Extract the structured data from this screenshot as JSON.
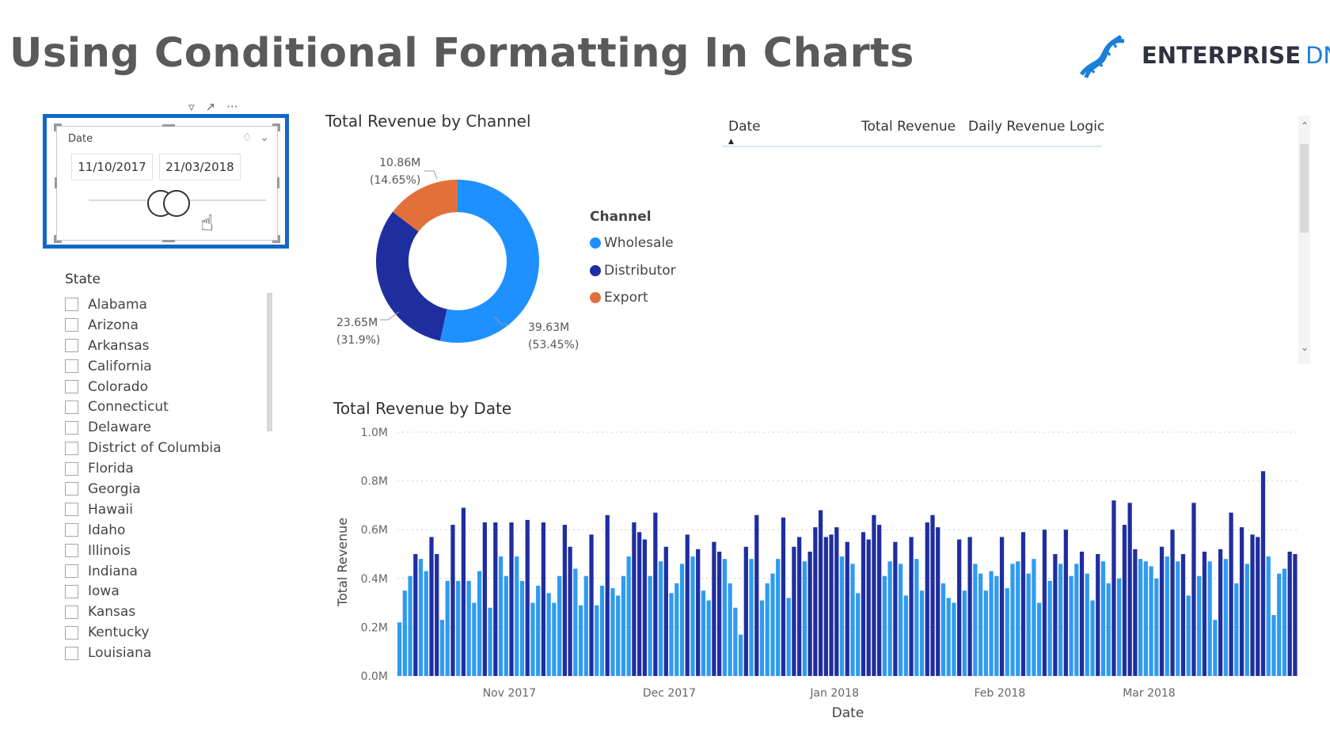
{
  "page": {
    "title": "Using Conditional Formatting In Charts",
    "logo": {
      "word1": "ENTERPRISE",
      "word2": "DNA"
    }
  },
  "date_slicer": {
    "label": "Date",
    "start": "11/10/2017",
    "end": "21/03/2018"
  },
  "state_slicer": {
    "title": "State",
    "items": [
      "Alabama",
      "Arizona",
      "Arkansas",
      "California",
      "Colorado",
      "Connecticut",
      "Delaware",
      "District of Columbia",
      "Florida",
      "Georgia",
      "Hawaii",
      "Idaho",
      "Illinois",
      "Indiana",
      "Iowa",
      "Kansas",
      "Kentucky",
      "Louisiana"
    ]
  },
  "donut": {
    "title": "Total Revenue by Channel",
    "legend_title": "Channel",
    "slices": [
      {
        "name": "Wholesale",
        "value": "39.63M",
        "pct": "(53.45%)",
        "share": 53.45,
        "color": "#1e90ff"
      },
      {
        "name": "Distributor",
        "value": "23.65M",
        "pct": "(31.9%)",
        "share": 31.9,
        "color": "#1f2e9e"
      },
      {
        "name": "Export",
        "value": "10.86M",
        "pct": "(14.65%)",
        "share": 14.65,
        "color": "#e2703a"
      }
    ]
  },
  "table": {
    "columns": [
      "Date",
      "Total Revenue",
      "Daily Revenue Logic"
    ]
  },
  "chart_data": {
    "type": "bar",
    "title": "Total Revenue by Date",
    "xlabel": "Date",
    "ylabel": "Total Revenue",
    "ylim": [
      0,
      1.0
    ],
    "yticks": [
      "0.0M",
      "0.2M",
      "0.4M",
      "0.6M",
      "0.8M",
      "1.0M"
    ],
    "xticks": [
      {
        "label": "Nov 2017",
        "index": 21
      },
      {
        "label": "Dec 2017",
        "index": 51
      },
      {
        "label": "Jan 2018",
        "index": 82
      },
      {
        "label": "Feb 2018",
        "index": 113
      },
      {
        "label": "Mar 2018",
        "index": 141
      }
    ],
    "start_date": "11/10/2017",
    "colors": {
      "high": "#1f2e9e",
      "low": "#2f9bf0"
    },
    "threshold": 0.5,
    "values": [
      0.22,
      0.35,
      0.41,
      0.5,
      0.48,
      0.43,
      0.57,
      0.5,
      0.23,
      0.39,
      0.62,
      0.39,
      0.69,
      0.39,
      0.3,
      0.43,
      0.63,
      0.28,
      0.63,
      0.49,
      0.41,
      0.63,
      0.49,
      0.39,
      0.64,
      0.3,
      0.37,
      0.63,
      0.34,
      0.3,
      0.41,
      0.62,
      0.53,
      0.44,
      0.29,
      0.41,
      0.58,
      0.29,
      0.37,
      0.66,
      0.36,
      0.33,
      0.41,
      0.49,
      0.63,
      0.59,
      0.56,
      0.41,
      0.67,
      0.47,
      0.53,
      0.34,
      0.38,
      0.46,
      0.58,
      0.49,
      0.52,
      0.35,
      0.31,
      0.55,
      0.51,
      0.48,
      0.38,
      0.28,
      0.17,
      0.53,
      0.48,
      0.66,
      0.31,
      0.38,
      0.42,
      0.48,
      0.65,
      0.32,
      0.53,
      0.57,
      0.47,
      0.51,
      0.61,
      0.68,
      0.57,
      0.58,
      0.61,
      0.49,
      0.55,
      0.46,
      0.34,
      0.59,
      0.56,
      0.66,
      0.62,
      0.41,
      0.47,
      0.55,
      0.46,
      0.33,
      0.57,
      0.48,
      0.35,
      0.63,
      0.66,
      0.61,
      0.38,
      0.32,
      0.3,
      0.56,
      0.35,
      0.57,
      0.46,
      0.42,
      0.35,
      0.43,
      0.41,
      0.57,
      0.36,
      0.46,
      0.47,
      0.59,
      0.42,
      0.48,
      0.3,
      0.6,
      0.39,
      0.5,
      0.46,
      0.6,
      0.41,
      0.46,
      0.51,
      0.42,
      0.31,
      0.5,
      0.47,
      0.38,
      0.72,
      0.4,
      0.62,
      0.71,
      0.52,
      0.48,
      0.47,
      0.45,
      0.4,
      0.53,
      0.49,
      0.6,
      0.47,
      0.5,
      0.33,
      0.71,
      0.41,
      0.51,
      0.47,
      0.23,
      0.52,
      0.48,
      0.67,
      0.38,
      0.61,
      0.46,
      0.58,
      0.57,
      0.84,
      0.49,
      0.25,
      0.42,
      0.44,
      0.51,
      0.5
    ]
  }
}
